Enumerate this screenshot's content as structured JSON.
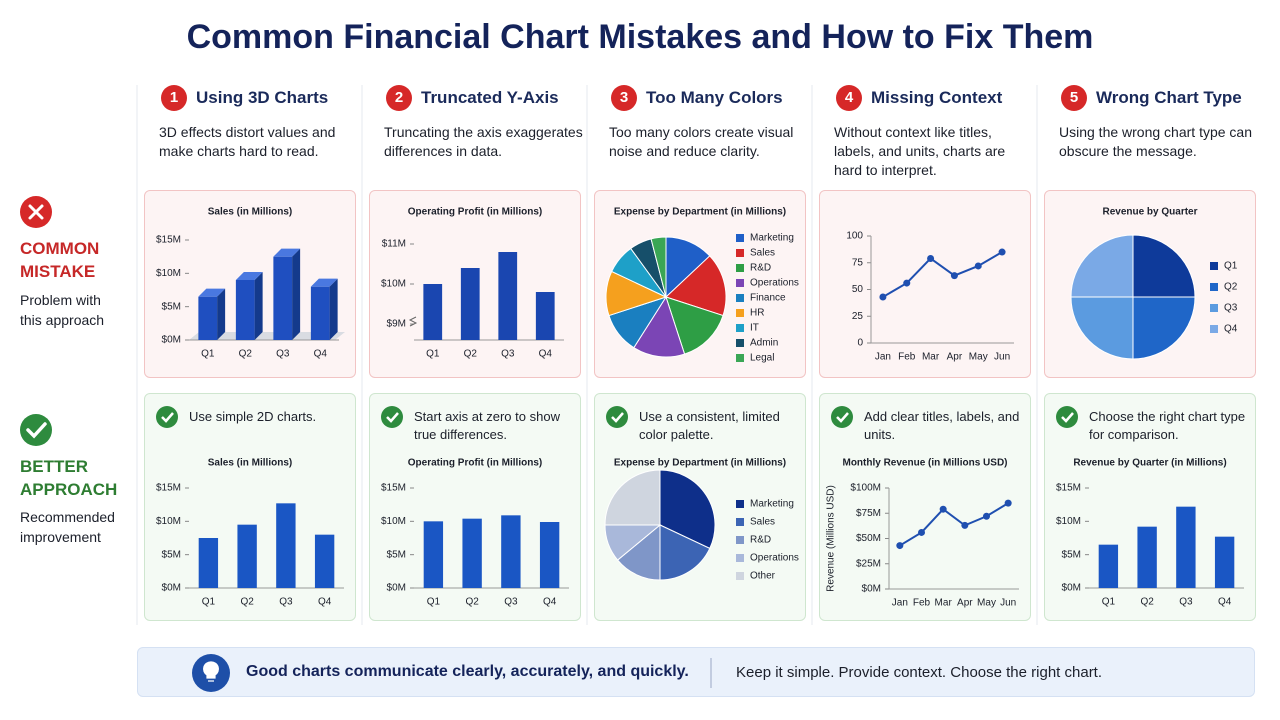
{
  "header": {
    "title": "Common Financial Chart Mistakes and How to Fix Them"
  },
  "sides": {
    "mistake": {
      "label": "COMMON MISTAKE",
      "sub": "Problem with this approach"
    },
    "better": {
      "label": "BETTER APPROACH",
      "sub": "Recommended improvement"
    }
  },
  "columns": [
    {
      "number": "1",
      "title": "Using 3D Charts",
      "description": "3D effects distort values and make charts hard to read.",
      "mistake_chart": {
        "type": "bar",
        "three_d": true,
        "title": "Sales (in Millions)",
        "categories": [
          "Q1",
          "Q2",
          "Q3",
          "Q4"
        ],
        "values": [
          6.5,
          9,
          12.5,
          8
        ],
        "color": "#1f4fc0",
        "ylim": [
          0,
          15
        ],
        "yticks": [
          {
            "value": 0,
            "label": "$0M"
          },
          {
            "value": 5,
            "label": "$5M"
          },
          {
            "value": 10,
            "label": "$10M"
          },
          {
            "value": 15,
            "label": "$15M"
          }
        ]
      },
      "better_tip": "Use simple 2D charts.",
      "better_chart": {
        "type": "bar",
        "title": "Sales (in Millions)",
        "categories": [
          "Q1",
          "Q2",
          "Q3",
          "Q4"
        ],
        "values": [
          7.5,
          9.5,
          12.7,
          8
        ],
        "color": "#1a56c4",
        "ylim": [
          0,
          15
        ],
        "yticks": [
          {
            "value": 0,
            "label": "$0M"
          },
          {
            "value": 5,
            "label": "$5M"
          },
          {
            "value": 10,
            "label": "$10M"
          },
          {
            "value": 15,
            "label": "$15M"
          }
        ]
      }
    },
    {
      "number": "2",
      "title": "Truncated Y-Axis",
      "description": "Truncating the axis exaggerates differences in data.",
      "mistake_chart": {
        "type": "bar",
        "axis_break": true,
        "title": "Operating Profit (in Millions)",
        "categories": [
          "Q1",
          "Q2",
          "Q3",
          "Q4"
        ],
        "values": [
          10,
          10.4,
          10.8,
          9.8
        ],
        "color": "#1a46b0",
        "ylim": [
          8.6,
          11.1
        ],
        "yticks": [
          {
            "value": 9,
            "label": "$9M"
          },
          {
            "value": 10,
            "label": "$10M"
          },
          {
            "value": 11,
            "label": "$11M"
          }
        ]
      },
      "better_tip": "Start axis at zero to show true differences.",
      "better_chart": {
        "type": "bar",
        "title": "Operating Profit (in Millions)",
        "categories": [
          "Q1",
          "Q2",
          "Q3",
          "Q4"
        ],
        "values": [
          10,
          10.4,
          10.9,
          9.9
        ],
        "color": "#1a56c4",
        "ylim": [
          0,
          15
        ],
        "yticks": [
          {
            "value": 0,
            "label": "$0M"
          },
          {
            "value": 5,
            "label": "$5M"
          },
          {
            "value": 10,
            "label": "$10M"
          },
          {
            "value": 15,
            "label": "$15M"
          }
        ]
      }
    },
    {
      "number": "3",
      "title": "Too Many Colors",
      "description": "Too many colors create visual noise and reduce clarity.",
      "mistake_chart": {
        "type": "pie",
        "title": "Expense by Department (in Millions)",
        "categories": [
          "Marketing",
          "Sales",
          "R&D",
          "Operations",
          "Finance",
          "HR",
          "IT",
          "Admin",
          "Legal"
        ],
        "values": [
          13,
          17,
          15,
          14,
          11,
          12,
          8,
          6,
          4
        ],
        "colors": [
          "#1f5fc8",
          "#d62828",
          "#2e9e45",
          "#7b45b5",
          "#1a7fc0",
          "#f5a01e",
          "#1ea0c8",
          "#164f6a",
          "#3aa655"
        ]
      },
      "better_tip": "Use a consistent, limited color palette.",
      "better_chart": {
        "type": "pie",
        "title": "Expense by Department (in Millions)",
        "categories": [
          "Marketing",
          "Sales",
          "R&D",
          "Operations",
          "Other"
        ],
        "values": [
          32,
          18,
          14,
          11,
          25
        ],
        "colors": [
          "#0e2f8a",
          "#3c64b4",
          "#7f96c8",
          "#a9b8da",
          "#cfd5df"
        ]
      }
    },
    {
      "number": "4",
      "title": "Missing Context",
      "description": "Without context like titles, labels, and units, charts are hard to interpret.",
      "mistake_chart": {
        "type": "line",
        "categories": [
          "Jan",
          "Feb",
          "Mar",
          "Apr",
          "May",
          "Jun"
        ],
        "values": [
          43,
          56,
          79,
          63,
          72,
          85
        ],
        "color": "#1f4fb0",
        "ylim": [
          0,
          100
        ],
        "yticks": [
          0,
          25,
          50,
          75,
          100
        ]
      },
      "better_tip": "Add clear titles, labels, and units.",
      "better_chart": {
        "type": "line",
        "title": "Monthly Revenue (in Millions USD)",
        "ylabel": "Revenue (Millions USD)",
        "categories": [
          "Jan",
          "Feb",
          "Mar",
          "Apr",
          "May",
          "Jun"
        ],
        "values": [
          43,
          56,
          79,
          63,
          72,
          85
        ],
        "color": "#1f4fb0",
        "ylim": [
          0,
          100
        ],
        "yticks": [
          {
            "value": 0,
            "label": "$0M"
          },
          {
            "value": 25,
            "label": "$25M"
          },
          {
            "value": 50,
            "label": "$50M"
          },
          {
            "value": 75,
            "label": "$75M"
          },
          {
            "value": 100,
            "label": "$100M"
          }
        ]
      }
    },
    {
      "number": "5",
      "title": "Wrong Chart Type",
      "description": "Using the wrong chart type can obscure the message.",
      "mistake_chart": {
        "type": "pie",
        "title": "Revenue by Quarter",
        "categories": [
          "Q1",
          "Q2",
          "Q3",
          "Q4"
        ],
        "values": [
          25,
          25,
          25,
          25
        ],
        "colors": [
          "#0e3a9a",
          "#1f66c8",
          "#5b9be0",
          "#7aa9e6"
        ]
      },
      "better_tip": "Choose the right chart type for comparison.",
      "better_chart": {
        "type": "bar",
        "title": "Revenue by Quarter (in Millions)",
        "categories": [
          "Q1",
          "Q2",
          "Q3",
          "Q4"
        ],
        "values": [
          6.5,
          9.2,
          12.2,
          7.7
        ],
        "color": "#1a56c4",
        "ylim": [
          0,
          15
        ],
        "yticks": [
          {
            "value": 0,
            "label": "$0M"
          },
          {
            "value": 5,
            "label": "$5M"
          },
          {
            "value": 10,
            "label": "$10M"
          },
          {
            "value": 15,
            "label": "$15M"
          }
        ]
      }
    }
  ],
  "footer": {
    "main": "Good charts communicate clearly, accurately, and quickly.",
    "tagline": "Keep it simple. Provide context. Choose the right chart."
  }
}
